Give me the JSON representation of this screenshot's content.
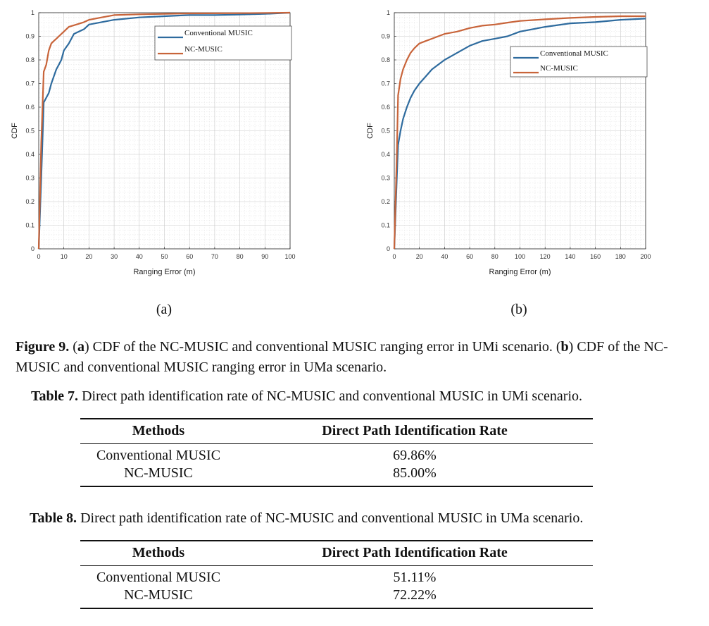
{
  "figure": {
    "panel_labels": [
      "(a)",
      "(b)"
    ],
    "caption": {
      "label": "Figure 9.",
      "a_letter": "a",
      "a_text": ") CDF of the NC-MUSIC and conventional MUSIC ranging error in UMi scenario. (",
      "b_letter": "b",
      "b_text": ") CDF of the NC-MUSIC and conventional MUSIC ranging error in UMa scenario."
    }
  },
  "chart_data": [
    {
      "type": "line",
      "xlabel": "Ranging Error (m)",
      "ylabel": "CDF",
      "xlim": [
        0,
        100
      ],
      "ylim": [
        0,
        1
      ],
      "xticks": [
        0,
        10,
        20,
        30,
        40,
        50,
        60,
        70,
        80,
        90,
        100
      ],
      "yticks": [
        0,
        0.1,
        0.2,
        0.3,
        0.4,
        0.5,
        0.6,
        0.7,
        0.8,
        0.9,
        1
      ],
      "grid": true,
      "legend_position": "top-right",
      "series": [
        {
          "name": "Conventional MUSIC",
          "color": "#2e6b9e",
          "x": [
            0,
            1,
            2,
            3,
            4,
            5,
            6,
            7,
            8,
            9,
            10,
            12,
            14,
            16,
            18,
            20,
            25,
            30,
            40,
            50,
            60,
            70,
            80,
            90,
            100
          ],
          "y": [
            0,
            0.3,
            0.62,
            0.64,
            0.66,
            0.7,
            0.73,
            0.76,
            0.78,
            0.8,
            0.84,
            0.87,
            0.91,
            0.92,
            0.93,
            0.95,
            0.96,
            0.97,
            0.98,
            0.985,
            0.99,
            0.99,
            0.992,
            0.995,
            1.0
          ]
        },
        {
          "name": "NC-MUSIC",
          "color": "#c8643a",
          "x": [
            0,
            1,
            2,
            3,
            4,
            5,
            6,
            7,
            8,
            10,
            12,
            15,
            18,
            20,
            25,
            30,
            40,
            50,
            60,
            80,
            100
          ],
          "y": [
            0,
            0.45,
            0.75,
            0.78,
            0.84,
            0.87,
            0.88,
            0.89,
            0.9,
            0.92,
            0.94,
            0.95,
            0.96,
            0.97,
            0.98,
            0.99,
            0.993,
            0.995,
            0.997,
            0.998,
            1.0
          ]
        }
      ]
    },
    {
      "type": "line",
      "xlabel": "Ranging Error (m)",
      "ylabel": "CDF",
      "xlim": [
        0,
        200
      ],
      "ylim": [
        0,
        1
      ],
      "xticks": [
        0,
        20,
        40,
        60,
        80,
        100,
        120,
        140,
        160,
        180,
        200
      ],
      "yticks": [
        0,
        0.1,
        0.2,
        0.3,
        0.4,
        0.5,
        0.6,
        0.7,
        0.8,
        0.9,
        1
      ],
      "grid": true,
      "legend_position": "top-right",
      "series": [
        {
          "name": "Conventional MUSIC",
          "color": "#2e6b9e",
          "x": [
            0,
            2,
            3,
            5,
            7,
            10,
            13,
            16,
            20,
            25,
            30,
            40,
            50,
            60,
            70,
            80,
            90,
            100,
            120,
            140,
            160,
            180,
            200
          ],
          "y": [
            0,
            0.3,
            0.44,
            0.5,
            0.55,
            0.6,
            0.64,
            0.67,
            0.7,
            0.73,
            0.76,
            0.8,
            0.83,
            0.86,
            0.88,
            0.89,
            0.9,
            0.92,
            0.94,
            0.955,
            0.96,
            0.97,
            0.975
          ]
        },
        {
          "name": "NC-MUSIC",
          "color": "#c8643a",
          "x": [
            0,
            2,
            3,
            5,
            7,
            10,
            13,
            16,
            20,
            25,
            30,
            40,
            50,
            60,
            70,
            80,
            90,
            100,
            120,
            140,
            160,
            180,
            200
          ],
          "y": [
            0,
            0.4,
            0.65,
            0.72,
            0.76,
            0.8,
            0.83,
            0.85,
            0.87,
            0.88,
            0.89,
            0.91,
            0.92,
            0.935,
            0.945,
            0.95,
            0.958,
            0.965,
            0.972,
            0.978,
            0.982,
            0.985,
            0.985
          ]
        }
      ]
    }
  ],
  "table7": {
    "label": "Table 7.",
    "caption": "Direct path identification rate of NC-MUSIC and conventional MUSIC in UMi scenario.",
    "headers": [
      "Methods",
      "Direct Path Identification Rate"
    ],
    "rows": [
      [
        "Conventional MUSIC",
        "69.86%"
      ],
      [
        "NC-MUSIC",
        "85.00%"
      ]
    ]
  },
  "table8": {
    "label": "Table 8.",
    "caption": "Direct path identification rate of NC-MUSIC and conventional MUSIC in UMa scenario.",
    "headers": [
      "Methods",
      "Direct Path Identification Rate"
    ],
    "rows": [
      [
        "Conventional MUSIC",
        "51.11%"
      ],
      [
        "NC-MUSIC",
        "72.22%"
      ]
    ]
  }
}
